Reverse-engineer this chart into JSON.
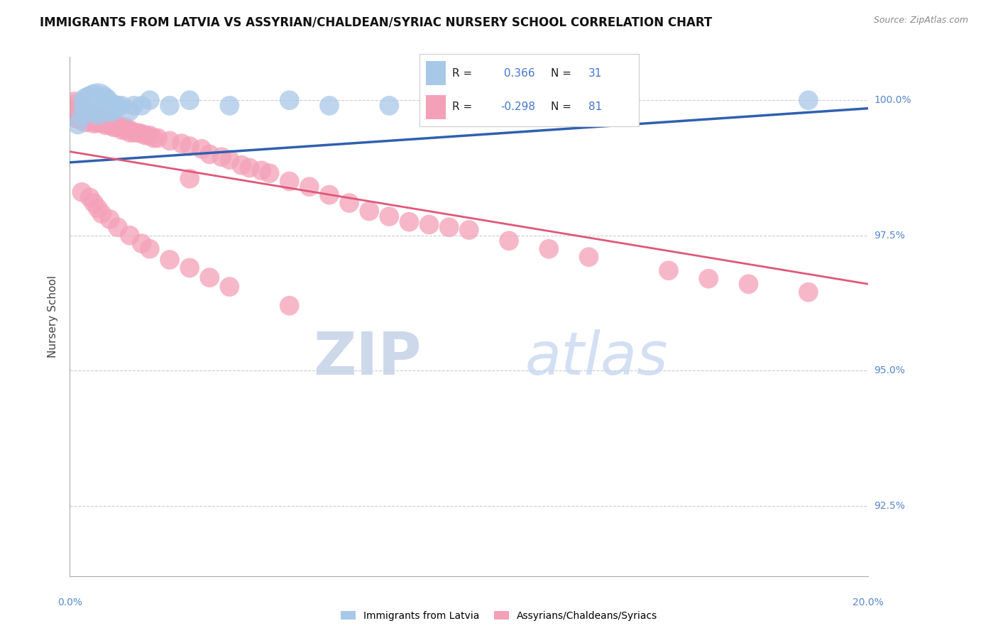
{
  "title": "IMMIGRANTS FROM LATVIA VS ASSYRIAN/CHALDEAN/SYRIAC NURSERY SCHOOL CORRELATION CHART",
  "source": "Source: ZipAtlas.com",
  "ylabel": "Nursery School",
  "ytick_labels": [
    "92.5%",
    "95.0%",
    "97.5%",
    "100.0%"
  ],
  "ytick_values": [
    0.925,
    0.95,
    0.975,
    1.0
  ],
  "xlim": [
    0.0,
    0.2
  ],
  "ylim": [
    0.912,
    1.008
  ],
  "blue_R": 0.366,
  "blue_N": 31,
  "pink_R": -0.298,
  "pink_N": 81,
  "blue_color": "#a8c8e8",
  "pink_color": "#f4a0b8",
  "blue_line_color": "#3060b0",
  "pink_line_color": "#e05878",
  "legend_label_blue": "Immigrants from Latvia",
  "legend_label_pink": "Assyrians/Chaldeans/Syriacs",
  "blue_line_x0": 0.0,
  "blue_line_y0": 0.9885,
  "blue_line_x1": 0.2,
  "blue_line_y1": 0.9985,
  "pink_line_x0": 0.0,
  "pink_line_y0": 0.9905,
  "pink_line_x1": 0.2,
  "pink_line_y1": 0.966,
  "blue_x": [
    0.002,
    0.003,
    0.004,
    0.004,
    0.005,
    0.005,
    0.006,
    0.006,
    0.007,
    0.007,
    0.007,
    0.008,
    0.008,
    0.009,
    0.01,
    0.01,
    0.011,
    0.011,
    0.012,
    0.013,
    0.015,
    0.016,
    0.018,
    0.02,
    0.025,
    0.03,
    0.04,
    0.055,
    0.065,
    0.08,
    0.185
  ],
  "blue_y": [
    0.9955,
    0.997,
    1.0,
    0.999,
    1.0,
    0.999,
    1.0,
    0.999,
    1.0,
    0.999,
    0.998,
    1.0,
    0.999,
    1.0,
    0.999,
    0.998,
    0.999,
    0.998,
    0.999,
    0.999,
    0.998,
    0.999,
    0.999,
    1.0,
    0.999,
    1.0,
    0.999,
    1.0,
    0.999,
    0.999,
    1.0
  ],
  "blue_sizes": [
    40,
    40,
    60,
    60,
    80,
    80,
    100,
    90,
    120,
    100,
    80,
    80,
    60,
    60,
    60,
    50,
    50,
    40,
    40,
    40,
    40,
    40,
    40,
    40,
    40,
    40,
    40,
    40,
    40,
    40,
    40
  ],
  "pink_x": [
    0.001,
    0.002,
    0.002,
    0.003,
    0.003,
    0.004,
    0.004,
    0.005,
    0.005,
    0.006,
    0.006,
    0.006,
    0.007,
    0.007,
    0.008,
    0.008,
    0.009,
    0.009,
    0.01,
    0.01,
    0.011,
    0.011,
    0.012,
    0.012,
    0.013,
    0.013,
    0.014,
    0.014,
    0.015,
    0.015,
    0.016,
    0.017,
    0.018,
    0.019,
    0.02,
    0.021,
    0.022,
    0.025,
    0.028,
    0.03,
    0.03,
    0.033,
    0.035,
    0.038,
    0.04,
    0.043,
    0.045,
    0.048,
    0.05,
    0.055,
    0.06,
    0.065,
    0.07,
    0.075,
    0.08,
    0.085,
    0.09,
    0.095,
    0.1,
    0.11,
    0.12,
    0.13,
    0.15,
    0.16,
    0.17,
    0.185,
    0.003,
    0.005,
    0.006,
    0.007,
    0.008,
    0.01,
    0.012,
    0.015,
    0.018,
    0.02,
    0.025,
    0.03,
    0.035,
    0.04,
    0.055
  ],
  "pink_y": [
    0.999,
    0.998,
    0.9975,
    0.9975,
    0.997,
    0.9975,
    0.9965,
    0.997,
    0.9965,
    0.997,
    0.9965,
    0.996,
    0.9965,
    0.996,
    0.9965,
    0.996,
    0.996,
    0.9955,
    0.996,
    0.9955,
    0.9955,
    0.995,
    0.9955,
    0.995,
    0.995,
    0.9945,
    0.995,
    0.9945,
    0.9945,
    0.994,
    0.994,
    0.994,
    0.9938,
    0.9935,
    0.9935,
    0.993,
    0.993,
    0.9925,
    0.992,
    0.9915,
    0.9855,
    0.991,
    0.99,
    0.9895,
    0.989,
    0.988,
    0.9875,
    0.987,
    0.9865,
    0.985,
    0.984,
    0.9825,
    0.981,
    0.9795,
    0.9785,
    0.9775,
    0.977,
    0.9765,
    0.976,
    0.974,
    0.9725,
    0.971,
    0.9685,
    0.967,
    0.966,
    0.9645,
    0.983,
    0.982,
    0.981,
    0.98,
    0.979,
    0.978,
    0.9765,
    0.975,
    0.9735,
    0.9725,
    0.9705,
    0.969,
    0.9672,
    0.9655,
    0.962
  ],
  "pink_sizes": [
    80,
    120,
    90,
    80,
    80,
    70,
    70,
    60,
    55,
    60,
    55,
    55,
    55,
    50,
    50,
    50,
    45,
    45,
    45,
    45,
    40,
    40,
    40,
    40,
    40,
    40,
    40,
    40,
    40,
    40,
    40,
    40,
    40,
    40,
    40,
    40,
    40,
    40,
    40,
    40,
    40,
    40,
    40,
    40,
    40,
    40,
    40,
    40,
    40,
    40,
    40,
    40,
    40,
    40,
    40,
    40,
    40,
    40,
    40,
    40,
    40,
    40,
    40,
    40,
    40,
    40,
    40,
    40,
    40,
    40,
    40,
    40,
    40,
    40,
    40,
    40,
    40,
    40,
    40,
    40,
    40
  ]
}
